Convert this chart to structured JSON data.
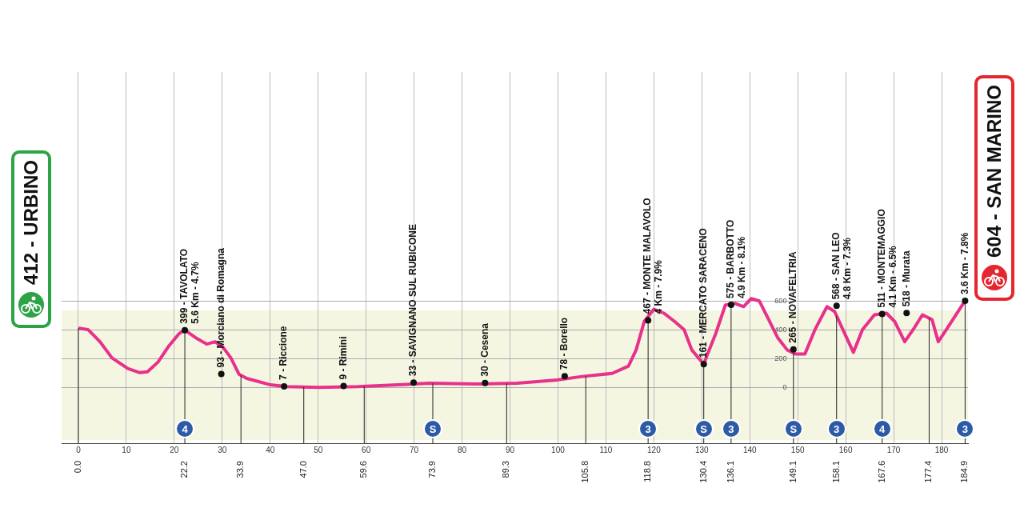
{
  "chart_data": {
    "type": "line",
    "x": [
      0,
      2.0,
      4.5,
      7.0,
      10.3,
      12.8,
      14.4,
      16.6,
      18.9,
      21.0,
      22.2,
      24.4,
      26.8,
      28.5,
      30.2,
      31.8,
      33.5,
      35.1,
      40.1,
      43.4,
      50.0,
      58.3,
      66.6,
      73.2,
      83.2,
      91.5,
      99.8,
      104.7,
      111.3,
      114.7,
      116.3,
      118.0,
      120.0,
      122.1,
      124.3,
      126.3,
      127.9,
      130.4,
      131.2,
      132.9,
      134.9,
      137.0,
      138.7,
      140.3,
      142.0,
      143.7,
      145.8,
      147.8,
      149.5,
      151.5,
      153.6,
      156.1,
      157.7,
      159.4,
      161.6,
      163.5,
      166.0,
      168.5,
      170.2,
      172.3,
      174.3,
      176.0,
      178.0,
      179.3,
      181.0,
      184.9
    ],
    "series": [
      {
        "color": "#e8318a",
        "values": [
          412,
          403,
          318,
          205,
          131,
          102,
          108,
          176,
          290,
          375,
          399,
          347,
          301,
          318,
          278,
          205,
          91,
          62,
          17,
          5,
          0,
          5,
          17,
          28,
          23,
          28,
          51,
          74,
          97,
          148,
          261,
          460,
          545,
          517,
          460,
          403,
          261,
          161,
          233,
          375,
          574,
          585,
          563,
          619,
          602,
          489,
          347,
          261,
          233,
          233,
          403,
          563,
          528,
          403,
          244,
          403,
          506,
          517,
          460,
          318,
          415,
          506,
          472,
          318,
          403,
          604
        ]
      }
    ],
    "xlim": [
      -3.5,
      185.5
    ],
    "xticks": [
      0,
      10,
      20,
      30,
      40,
      50,
      60,
      70,
      80,
      90,
      100,
      110,
      120,
      130,
      140,
      150,
      160,
      170,
      180
    ],
    "ylim": [
      -390,
      2200
    ],
    "yticks": [
      0,
      200,
      400,
      600
    ],
    "grid": true,
    "annotations": [
      {
        "text": "412 - URBINO",
        "x": 0,
        "y": 412
      },
      {
        "text": "399 - TAVOLATO",
        "x": 22.2,
        "y": 399
      },
      {
        "text": "5.6 Km - 4.7%",
        "x": 22.2,
        "y": 399
      },
      {
        "text": "93 - Morciano di Romagna",
        "x": 29.8,
        "y": 93
      },
      {
        "text": "7 - Riccione",
        "x": 42.9,
        "y": 7
      },
      {
        "text": "9 - Rimini",
        "x": 55.3,
        "y": 9
      },
      {
        "text": "33 - SAVIGNANO SUL RUBICONE",
        "x": 69.9,
        "y": 33
      },
      {
        "text": "30 - Cesena",
        "x": 84.8,
        "y": 30
      },
      {
        "text": "78 - Borello",
        "x": 101.4,
        "y": 78
      },
      {
        "text": "467 - MONTE MALAVOLO",
        "x": 118.8,
        "y": 467
      },
      {
        "text": "4 Km - 7.9%",
        "x": 118.8,
        "y": 467
      },
      {
        "text": "161 - MERCATO SARACENO",
        "x": 130.4,
        "y": 161
      },
      {
        "text": "575 - BARBOTTO",
        "x": 136.1,
        "y": 575
      },
      {
        "text": "4.9 Km - 8.1%",
        "x": 136.1,
        "y": 575
      },
      {
        "text": "265 - NOVAFELTRIA",
        "x": 149.1,
        "y": 265
      },
      {
        "text": "568 - SAN LEO",
        "x": 158.1,
        "y": 568
      },
      "4.8 Km - 7.3%",
      {
        "text": "511 - MONTEMAGGIO",
        "x": 167.6,
        "y": 511
      },
      {
        "text": "4.1 Km - 6.5%",
        "x": 167.6,
        "y": 511
      },
      {
        "text": "518 - Murata",
        "x": 172.7,
        "y": 518
      },
      {
        "text": "4",
        "x": 22.2
      },
      {
        "text": "S",
        "x": 73.9
      },
      {
        "text": "3",
        "x": 118.8
      },
      {
        "text": "S",
        "x": 130.4
      },
      {
        "text": "3",
        "x": 136.1
      },
      {
        "text": "S",
        "x": 149.1
      },
      {
        "text": "3",
        "x": 158.1
      },
      {
        "text": "4",
        "x": 167.6
      },
      {
        "text": "3",
        "x": 184.9
      },
      {
        "text": "3.6 Km - 7.8%",
        "x": 184.9,
        "y": 604
      },
      {
        "text": "604 - SAN MARINO",
        "x": 184.9,
        "y": 604
      }
    ],
    "ref_lines": [
      {
        "axis": "x",
        "value": 0,
        "label": "0.0"
      },
      {
        "axis": "x",
        "value": 22.2,
        "label": "22.2"
      },
      {
        "axis": "x",
        "value": 33.9,
        "label": "33.9"
      },
      {
        "axis": "x",
        "value": 47.0,
        "label": "47.0"
      },
      {
        "axis": "x",
        "value": 59.6,
        "label": "59.6"
      },
      {
        "axis": "x",
        "value": 73.9,
        "label": "73.9"
      },
      {
        "axis": "x",
        "value": 89.3,
        "label": "89.3"
      },
      {
        "axis": "x",
        "value": 105.8,
        "label": "105.8"
      },
      {
        "axis": "x",
        "value": 118.8,
        "label": "118.8"
      },
      {
        "axis": "x",
        "value": 130.4,
        "label": "130.4"
      },
      {
        "axis": "x",
        "value": 136.1,
        "label": "136.1"
      },
      {
        "axis": "x",
        "value": 149.1,
        "label": "149.1"
      },
      {
        "axis": "x",
        "value": 158.1,
        "label": "158.1"
      },
      {
        "axis": "x",
        "value": 167.6,
        "label": "167.6"
      },
      {
        "axis": "x",
        "value": 177.4,
        "label": "177.4"
      },
      {
        "axis": "x",
        "value": 184.9,
        "label": "184.9"
      }
    ]
  }
}
